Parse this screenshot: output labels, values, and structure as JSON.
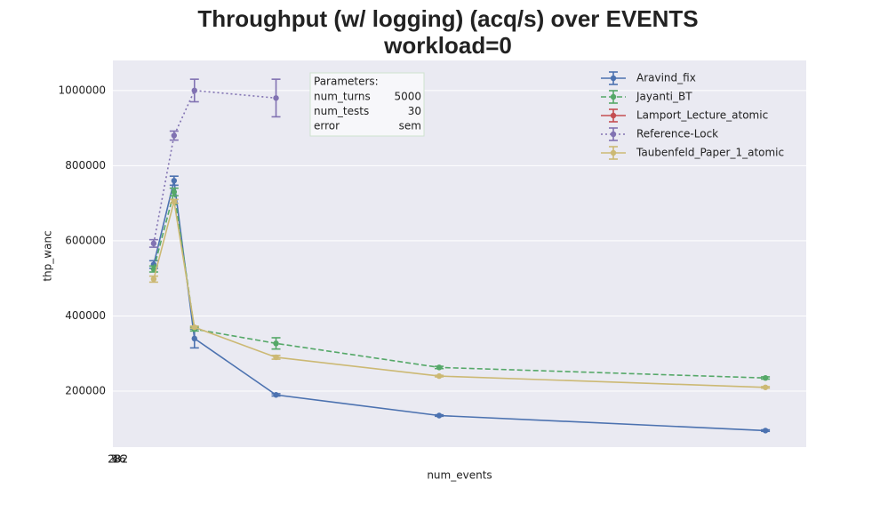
{
  "chart_data": {
    "type": "line",
    "title": [
      "Throughput (w/ logging) (acq/s) over EVENTS",
      "workload=0"
    ],
    "xlabel": "num_events",
    "ylabel": "thp_wanc",
    "x": [
      2,
      3,
      4,
      8,
      16,
      32
    ],
    "xlim": [
      0,
      34
    ],
    "xticks": [
      {
        "value": 0,
        "label": "2"
      },
      {
        "value": 0.1,
        "label": "3"
      },
      {
        "value": 0.2,
        "label": "4"
      },
      {
        "value": 0.3,
        "label": "8"
      },
      {
        "value": 0.4,
        "label": "16"
      },
      {
        "value": 0.5,
        "label": "32"
      }
    ],
    "ylim": [
      51000,
      1080000
    ],
    "yticks": [
      200000,
      400000,
      600000,
      800000,
      1000000
    ],
    "grid": true,
    "legend": "upper right",
    "series": [
      {
        "name": "Aravind_fix",
        "color": "#4c72b0",
        "linestyle": "solid",
        "values": [
          537000,
          760000,
          340000,
          190000,
          135000,
          95000
        ],
        "errors": [
          10000,
          12000,
          25000,
          3000,
          2000,
          2000
        ]
      },
      {
        "name": "Jayanti_BT",
        "color": "#55a868",
        "linestyle": "dashed",
        "values": [
          525000,
          730000,
          365000,
          327000,
          263000,
          235000
        ],
        "errors": [
          8000,
          10000,
          5000,
          15000,
          3000,
          3000
        ]
      },
      {
        "name": "Lamport_Lecture_atomic",
        "color": "#c44e52",
        "linestyle": "solid",
        "values": [
          null,
          null,
          null,
          null,
          null,
          null
        ],
        "errors": [
          null,
          null,
          null,
          null,
          null,
          null
        ]
      },
      {
        "name": "Reference-Lock",
        "color": "#8172b2",
        "linestyle": "dotted",
        "values": [
          593000,
          880000,
          1000000,
          980000,
          null,
          null
        ],
        "errors": [
          10000,
          12000,
          30000,
          50000,
          null,
          null
        ]
      },
      {
        "name": "Taubenfeld_Paper_1_atomic",
        "color": "#ccb974",
        "linestyle": "solid",
        "values": [
          498000,
          705000,
          370000,
          290000,
          240000,
          210000
        ],
        "errors": [
          8000,
          5000,
          3000,
          5000,
          2000,
          2000
        ]
      }
    ],
    "parameters": {
      "title": "Parameters:",
      "rows": [
        [
          "num_turns",
          "5000"
        ],
        [
          "num_tests",
          "30"
        ],
        [
          "error",
          "sem"
        ]
      ]
    }
  }
}
